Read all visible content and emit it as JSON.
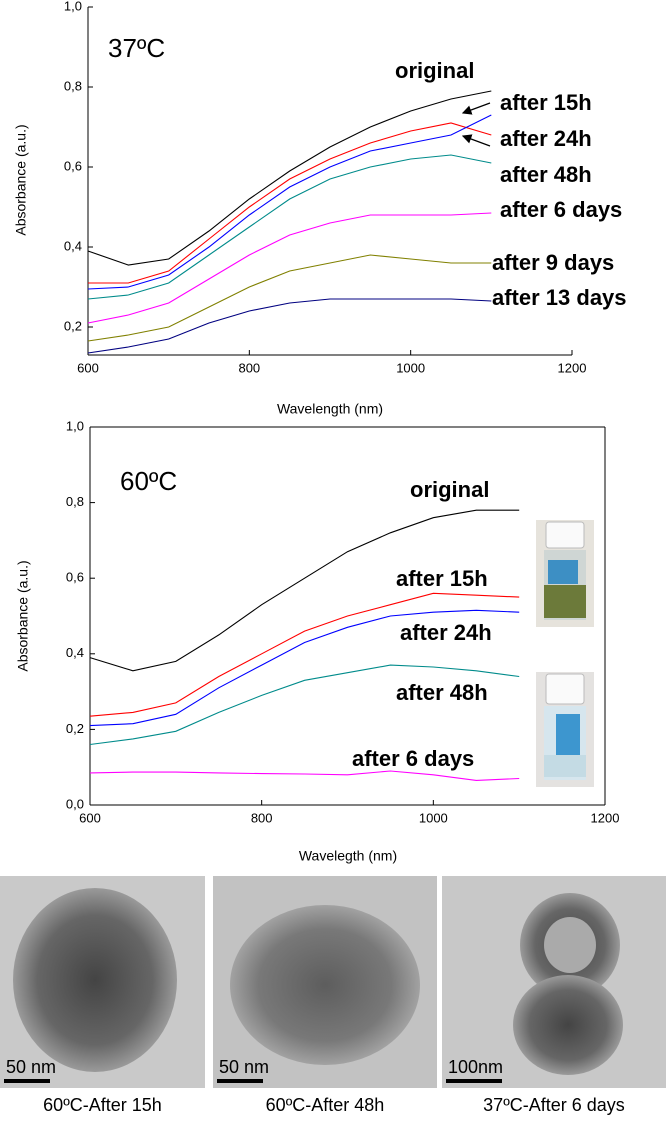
{
  "chart_data": [
    {
      "type": "line",
      "annotation": "37ºC",
      "x_label": "Wavelength (nm)",
      "y_label": "Absorbance (a.u.)",
      "x": [
        600,
        650,
        700,
        750,
        800,
        850,
        900,
        950,
        1000,
        1050,
        1100
      ],
      "xlim": [
        600,
        1200
      ],
      "xticks": [
        600,
        800,
        1000,
        1200
      ],
      "ylim": [
        0.13,
        1.0
      ],
      "yticks": [
        {
          "value": 0.2,
          "label": "0,2"
        },
        {
          "value": 0.4,
          "label": "0,4"
        },
        {
          "value": 0.6,
          "label": "0,6"
        },
        {
          "value": 0.8,
          "label": "0,8"
        },
        {
          "value": 1.0,
          "label": "1,0"
        }
      ],
      "series": [
        {
          "name": "original",
          "color": "#000000",
          "values": [
            0.39,
            0.355,
            0.37,
            0.44,
            0.52,
            0.59,
            0.65,
            0.7,
            0.74,
            0.77,
            0.79
          ]
        },
        {
          "name": "after 15h",
          "color": "#ff0000",
          "values": [
            0.31,
            0.31,
            0.34,
            0.42,
            0.5,
            0.57,
            0.62,
            0.66,
            0.69,
            0.71,
            0.68
          ]
        },
        {
          "name": "after 24h",
          "color": "#0000ff",
          "values": [
            0.295,
            0.3,
            0.33,
            0.4,
            0.48,
            0.55,
            0.6,
            0.64,
            0.66,
            0.68,
            0.73
          ]
        },
        {
          "name": "after 48h",
          "color": "#008b8b",
          "values": [
            0.27,
            0.28,
            0.31,
            0.38,
            0.45,
            0.52,
            0.57,
            0.6,
            0.62,
            0.63,
            0.61
          ]
        },
        {
          "name": "after 6 days",
          "color": "#ff00ff",
          "values": [
            0.21,
            0.23,
            0.26,
            0.32,
            0.38,
            0.43,
            0.46,
            0.48,
            0.48,
            0.48,
            0.485
          ]
        },
        {
          "name": "after 9 days",
          "color": "#808000",
          "values": [
            0.165,
            0.18,
            0.2,
            0.25,
            0.3,
            0.34,
            0.36,
            0.38,
            0.37,
            0.36,
            0.36
          ]
        },
        {
          "name": "after 13 days",
          "color": "#000080",
          "values": [
            0.135,
            0.15,
            0.17,
            0.21,
            0.24,
            0.26,
            0.27,
            0.27,
            0.27,
            0.27,
            0.265
          ]
        }
      ]
    },
    {
      "type": "line",
      "annotation": "60ºC",
      "x_label": "Wavelegth (nm)",
      "y_label": "Absorbance (a.u.)",
      "x": [
        600,
        650,
        700,
        750,
        800,
        850,
        900,
        950,
        1000,
        1050,
        1100
      ],
      "xlim": [
        600,
        1200
      ],
      "xticks": [
        600,
        800,
        1000,
        1200
      ],
      "ylim": [
        0,
        1.0
      ],
      "yticks": [
        {
          "value": 0,
          "label": "0,0"
        },
        {
          "value": 0.2,
          "label": "0,2"
        },
        {
          "value": 0.4,
          "label": "0,4"
        },
        {
          "value": 0.6,
          "label": "0,6"
        },
        {
          "value": 0.8,
          "label": "0,8"
        },
        {
          "value": 1.0,
          "label": "1,0"
        }
      ],
      "series": [
        {
          "name": "original",
          "color": "#000000",
          "values": [
            0.39,
            0.355,
            0.38,
            0.45,
            0.53,
            0.6,
            0.67,
            0.72,
            0.76,
            0.78,
            0.78
          ]
        },
        {
          "name": "after 15h",
          "color": "#ff0000",
          "values": [
            0.235,
            0.245,
            0.27,
            0.34,
            0.4,
            0.46,
            0.5,
            0.53,
            0.56,
            0.555,
            0.55
          ]
        },
        {
          "name": "after 24h",
          "color": "#0000ff",
          "values": [
            0.21,
            0.215,
            0.24,
            0.31,
            0.37,
            0.43,
            0.47,
            0.5,
            0.51,
            0.515,
            0.51
          ]
        },
        {
          "name": "after 48h",
          "color": "#008b8b",
          "values": [
            0.16,
            0.175,
            0.195,
            0.245,
            0.29,
            0.33,
            0.35,
            0.37,
            0.365,
            0.355,
            0.34
          ]
        },
        {
          "name": "after 6 days",
          "color": "#ff00ff",
          "values": [
            0.085,
            0.087,
            0.087,
            0.085,
            0.083,
            0.082,
            0.08,
            0.09,
            0.08,
            0.065,
            0.07
          ]
        }
      ]
    }
  ],
  "images": [
    {
      "scale_bar": "50 nm",
      "caption": "60ºC-After 15h"
    },
    {
      "scale_bar": "50 nm",
      "caption": "60ºC-After 48h"
    },
    {
      "scale_bar": "100nm",
      "caption": "37ºC-After 6 days"
    }
  ]
}
